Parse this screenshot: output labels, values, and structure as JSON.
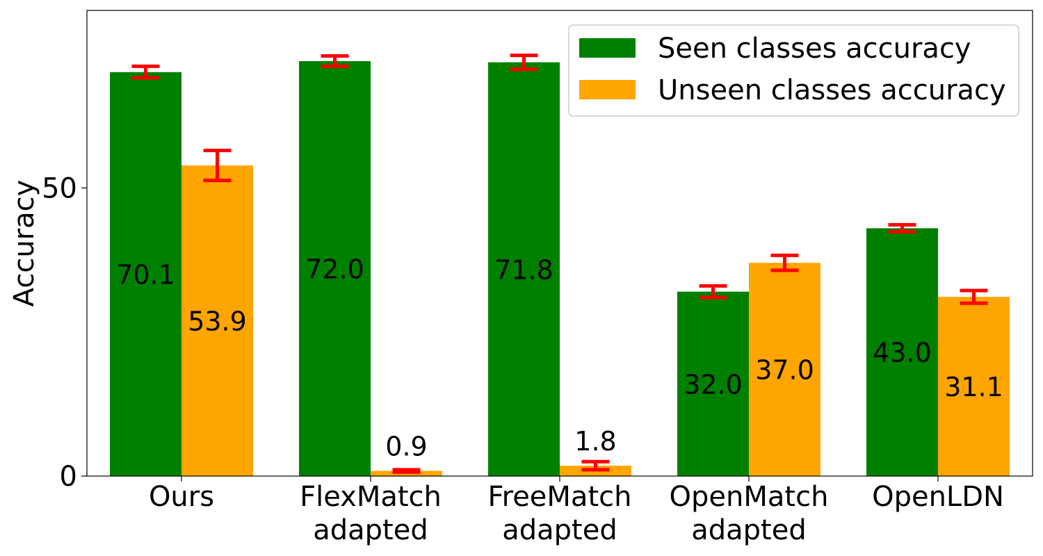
{
  "chart_data": {
    "type": "bar",
    "title": "",
    "xlabel": "",
    "ylabel": "Accuracy",
    "ylim": [
      0,
      80.8
    ],
    "yticks": [
      0,
      50
    ],
    "grid": false,
    "legend_position": "top-right",
    "categories": [
      [
        "Ours"
      ],
      [
        "FlexMatch",
        "adapted"
      ],
      [
        "FreeMatch",
        "adapted"
      ],
      [
        "OpenMatch",
        "adapted"
      ],
      [
        "OpenLDN"
      ]
    ],
    "series": [
      {
        "name": "Seen classes accuracy",
        "color": "#008000",
        "values": [
          70.1,
          72.0,
          71.8,
          32.0,
          43.0
        ],
        "errors": [
          1.0,
          0.9,
          1.2,
          1.0,
          0.6
        ],
        "labels": [
          "70.1",
          "72.0",
          "71.8",
          "32.0",
          "43.0"
        ]
      },
      {
        "name": "Unseen classes accuracy",
        "color": "#FFA500",
        "values": [
          53.9,
          0.9,
          1.8,
          37.0,
          31.1
        ],
        "errors": [
          2.6,
          0.2,
          0.7,
          1.3,
          1.1
        ],
        "labels": [
          "53.9",
          "0.9",
          "1.8",
          "37.0",
          "31.1"
        ]
      }
    ],
    "error_bar_color": "#FF0000"
  }
}
